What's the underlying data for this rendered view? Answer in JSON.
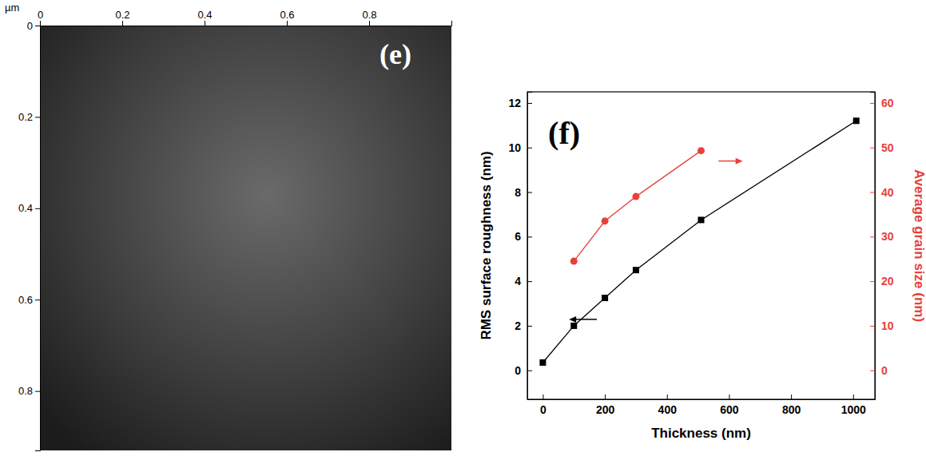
{
  "chart_data": [
    {
      "type": "image",
      "title": "(e)",
      "xlabel": "µm",
      "xlim": [
        0,
        1
      ],
      "xticks": [
        0,
        0.2,
        0.4,
        0.6,
        0.8
      ],
      "ylim": [
        0,
        0.93
      ],
      "yticks": [
        0,
        0.2,
        0.4,
        0.6,
        0.8
      ]
    },
    {
      "type": "line",
      "title": "(f)",
      "xlabel": "Thickness (nm)",
      "ylabel": "RMS surface roughness (nm)",
      "y2label": "Average grain size (nm)",
      "xlim": [
        -50,
        1070
      ],
      "xticks": [
        0,
        200,
        400,
        600,
        800,
        1000
      ],
      "ylim": [
        -1.3,
        12.5
      ],
      "yticks": [
        0,
        2,
        4,
        6,
        8,
        10,
        12
      ],
      "y2lim": [
        -6.5,
        62.5
      ],
      "y2ticks": [
        0,
        10,
        20,
        30,
        40,
        50,
        60
      ],
      "series": [
        {
          "color": "#000000",
          "marker": "square",
          "line_style": "solid",
          "x": [
            0,
            100,
            200,
            300,
            510,
            1010
          ],
          "values": [
            0.35,
            2.0,
            3.25,
            4.5,
            6.75,
            11.2
          ]
        },
        {
          "color": "#e8403a",
          "marker": "circle",
          "line_style": "solid",
          "axis": "y2",
          "x": [
            100,
            200,
            300,
            510
          ],
          "values": [
            24.5,
            33.5,
            39,
            49.3
          ]
        }
      ]
    }
  ]
}
